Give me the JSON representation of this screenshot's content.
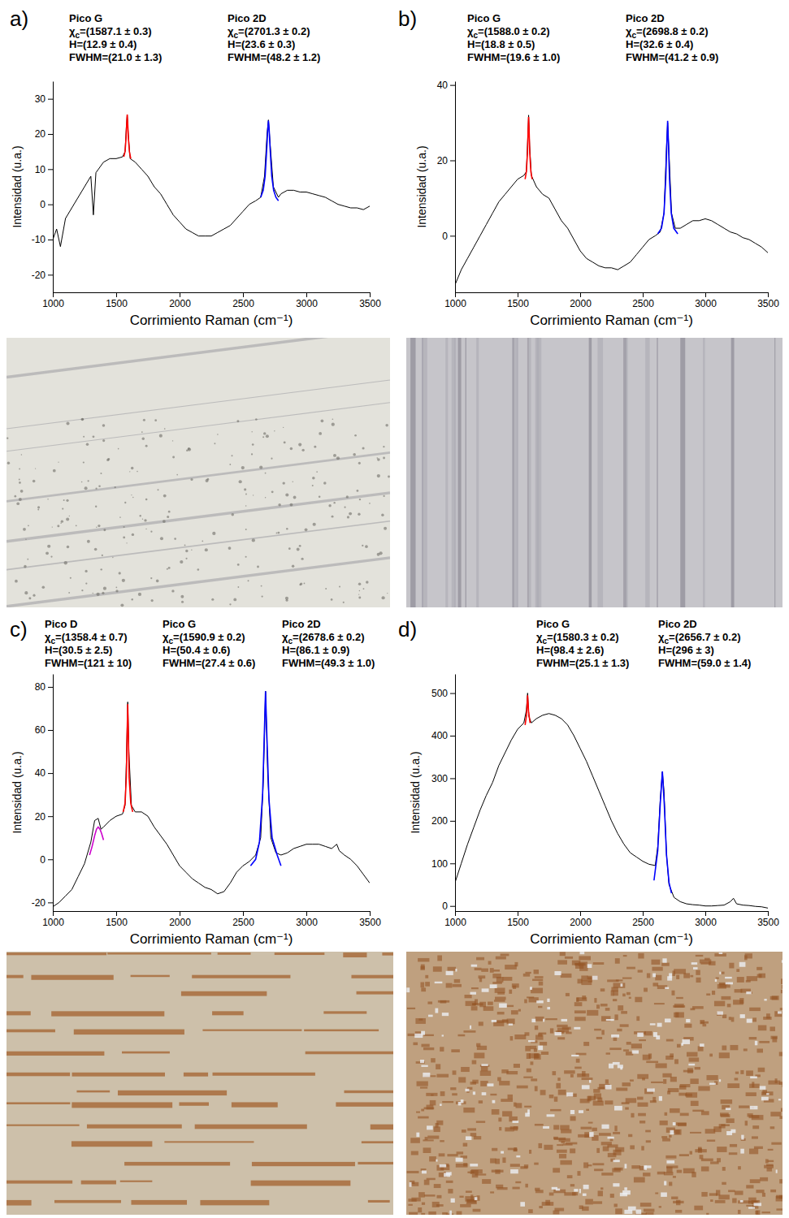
{
  "chart_data": [
    {
      "type": "line",
      "label": "a)",
      "x_label": "Corrimiento Raman (cm⁻¹)",
      "y_label": "Intensidad (u.a.)",
      "xlim": [
        1000,
        3500
      ],
      "xticks": [
        1000,
        1500,
        2000,
        2500,
        3000,
        3500
      ],
      "ylim": [
        -25,
        35
      ],
      "yticks": [
        -20,
        -10,
        0,
        10,
        20,
        30
      ],
      "series": [
        {
          "color": "#000000",
          "x": [
            1000,
            1030,
            1060,
            1100,
            1150,
            1200,
            1250,
            1300,
            1320,
            1340,
            1400,
            1450,
            1500,
            1550,
            1570,
            1580,
            1587,
            1595,
            1610,
            1650,
            1700,
            1750,
            1800,
            1850,
            1900,
            1950,
            2000,
            2050,
            2100,
            2150,
            2200,
            2250,
            2300,
            2350,
            2400,
            2450,
            2500,
            2550,
            2600,
            2640,
            2670,
            2690,
            2701,
            2715,
            2740,
            2780,
            2800,
            2850,
            2900,
            2950,
            3000,
            3050,
            3100,
            3150,
            3200,
            3250,
            3300,
            3350,
            3400,
            3450,
            3500
          ],
          "values": [
            -10,
            -7,
            -12,
            -4,
            -1,
            2,
            5,
            8,
            -3,
            9,
            12,
            13,
            13,
            13.5,
            15,
            22,
            25.5,
            20,
            13,
            12,
            10,
            8,
            5,
            3,
            0,
            -3,
            -5,
            -7,
            -8,
            -9,
            -9,
            -9,
            -8,
            -7,
            -6,
            -4,
            -2,
            0,
            1,
            2,
            8,
            20,
            24,
            17,
            5,
            2,
            3,
            4,
            4,
            3.5,
            3.5,
            3,
            2.5,
            2,
            1,
            0,
            -0.5,
            -1,
            -1,
            -1.5,
            -0.5
          ]
        },
        {
          "color": "#ff0000",
          "x": [
            1560,
            1570,
            1578,
            1583,
            1587,
            1591,
            1596,
            1604,
            1615
          ],
          "values": [
            13.5,
            15,
            19,
            23,
            25.5,
            23,
            19,
            15,
            13
          ]
        },
        {
          "color": "#0000ff",
          "x": [
            2640,
            2660,
            2675,
            2688,
            2695,
            2701,
            2707,
            2714,
            2727,
            2742,
            2760,
            2780
          ],
          "values": [
            2,
            4,
            8,
            16,
            21,
            23.8,
            21,
            16,
            8,
            4,
            2,
            1
          ]
        }
      ],
      "annotations": [
        {
          "title": "Pico G",
          "lines": [
            {
              "symbol": "χ",
              "subscript": "c",
              "text": "=(1587.1 ± 0.3)"
            },
            {
              "symbol": "H",
              "text": "=(12.9 ± 0.4)"
            },
            {
              "symbol": "FWHM",
              "text": "=(21.0 ± 1.3)"
            }
          ]
        },
        {
          "title": "Pico 2D",
          "lines": [
            {
              "symbol": "χ",
              "subscript": "c",
              "text": "=(2701.3 ± 0.2)"
            },
            {
              "symbol": "H",
              "text": "=(23.6 ± 0.3)"
            },
            {
              "symbol": "FWHM",
              "text": "=(48.2 ± 1.2)"
            }
          ]
        }
      ]
    },
    {
      "type": "line",
      "label": "b)",
      "x_label": "Corrimiento Raman (cm⁻¹)",
      "y_label": "Intensidad (u.a.)",
      "xlim": [
        1000,
        3500
      ],
      "xticks": [
        1000,
        1500,
        2000,
        2500,
        3000,
        3500
      ],
      "ylim": [
        -15,
        41
      ],
      "yticks": [
        0,
        20,
        40
      ],
      "series": [
        {
          "color": "#000000",
          "x": [
            1000,
            1050,
            1100,
            1150,
            1200,
            1250,
            1300,
            1350,
            1400,
            1450,
            1500,
            1550,
            1570,
            1580,
            1588,
            1596,
            1610,
            1650,
            1700,
            1750,
            1800,
            1850,
            1900,
            1950,
            2000,
            2050,
            2100,
            2150,
            2200,
            2250,
            2300,
            2350,
            2400,
            2450,
            2500,
            2550,
            2600,
            2640,
            2670,
            2688,
            2699,
            2710,
            2730,
            2760,
            2800,
            2850,
            2900,
            2950,
            3000,
            3050,
            3100,
            3150,
            3200,
            3250,
            3300,
            3350,
            3400,
            3450,
            3500
          ],
          "values": [
            -13,
            -9,
            -6,
            -3,
            0,
            3,
            6,
            9,
            11,
            13,
            15,
            16,
            17,
            25,
            32,
            24,
            16,
            13,
            11,
            10,
            7,
            4,
            2,
            -1,
            -4,
            -6,
            -7,
            -8,
            -8.5,
            -8.5,
            -9,
            -8,
            -7,
            -5,
            -3,
            -1,
            0,
            1,
            6,
            22,
            30,
            22,
            6,
            2,
            2,
            3,
            4,
            4,
            4.5,
            4,
            3,
            2,
            1,
            0.5,
            -0.5,
            -1,
            -2,
            -3,
            -4.5
          ]
        },
        {
          "color": "#ff0000",
          "x": [
            1560,
            1570,
            1579,
            1584,
            1588,
            1592,
            1597,
            1606,
            1616
          ],
          "values": [
            15,
            17,
            22,
            28,
            31.5,
            28,
            22,
            17,
            15
          ]
        },
        {
          "color": "#0000ff",
          "x": [
            2620,
            2650,
            2670,
            2684,
            2692,
            2699,
            2706,
            2714,
            2728,
            2748,
            2780
          ],
          "values": [
            0.5,
            2,
            6,
            15,
            24,
            30.5,
            24,
            15,
            6,
            2,
            0.5
          ]
        }
      ],
      "annotations": [
        {
          "title": "Pico G",
          "lines": [
            {
              "symbol": "χ",
              "subscript": "c",
              "text": "=(1588.0 ± 0.2)"
            },
            {
              "symbol": "H",
              "text": "=(18.8 ± 0.5)"
            },
            {
              "symbol": "FWHM",
              "text": "=(19.6 ± 1.0)"
            }
          ]
        },
        {
          "title": "Pico 2D",
          "lines": [
            {
              "symbol": "χ",
              "subscript": "c",
              "text": "=(2698.8 ± 0.2)"
            },
            {
              "symbol": "H",
              "text": "=(32.6 ± 0.4)"
            },
            {
              "symbol": "FWHM",
              "text": "=(41.2 ± 0.9)"
            }
          ]
        }
      ]
    },
    {
      "type": "line",
      "label": "c)",
      "x_label": "Corrimiento Raman (cm⁻¹)",
      "y_label": "Intensidad (u.a.)",
      "xlim": [
        1000,
        3500
      ],
      "xticks": [
        1000,
        1500,
        2000,
        2500,
        3000,
        3500
      ],
      "ylim": [
        -24,
        86
      ],
      "yticks": [
        -20,
        0,
        20,
        40,
        60,
        80
      ],
      "series": [
        {
          "color": "#000000",
          "x": [
            1000,
            1050,
            1100,
            1150,
            1200,
            1250,
            1300,
            1330,
            1358,
            1380,
            1400,
            1450,
            1500,
            1550,
            1570,
            1580,
            1591,
            1600,
            1620,
            1650,
            1700,
            1750,
            1800,
            1850,
            1900,
            1950,
            2000,
            2050,
            2100,
            2150,
            2200,
            2250,
            2300,
            2350,
            2400,
            2450,
            2500,
            2550,
            2600,
            2640,
            2660,
            2678,
            2695,
            2720,
            2760,
            2800,
            2850,
            2900,
            2950,
            3000,
            3050,
            3100,
            3150,
            3200,
            3240,
            3260,
            3300,
            3350,
            3400,
            3450,
            3500
          ],
          "values": [
            -22,
            -20,
            -17,
            -14,
            -8,
            -2,
            8,
            18,
            19,
            14,
            15,
            18,
            20,
            21,
            25,
            45,
            73,
            50,
            25,
            22,
            22,
            20,
            15,
            11,
            7,
            2,
            -3,
            -6,
            -9,
            -11,
            -13,
            -14,
            -16,
            -15,
            -11,
            -6,
            -3,
            -1,
            2,
            10,
            35,
            78,
            40,
            10,
            3,
            2,
            3,
            5,
            6,
            7,
            7,
            7,
            6,
            5,
            7,
            4,
            2,
            0,
            -3,
            -7,
            -11
          ]
        },
        {
          "color": "#cc00cc",
          "x": [
            1290,
            1310,
            1330,
            1345,
            1358,
            1372,
            1385,
            1400
          ],
          "values": [
            2,
            6,
            11,
            14,
            15,
            14,
            12,
            9
          ]
        },
        {
          "color": "#ff0000",
          "x": [
            1555,
            1570,
            1580,
            1586,
            1591,
            1596,
            1602,
            1615,
            1630
          ],
          "values": [
            22,
            26,
            38,
            58,
            72,
            58,
            38,
            26,
            22
          ]
        },
        {
          "color": "#0000ff",
          "x": [
            2560,
            2600,
            2630,
            2655,
            2667,
            2678,
            2690,
            2705,
            2730,
            2770,
            2800
          ],
          "values": [
            -3,
            0,
            8,
            30,
            55,
            78,
            55,
            28,
            10,
            2,
            -3
          ]
        }
      ],
      "annotations": [
        {
          "title": "Pico D",
          "lines": [
            {
              "symbol": "χ",
              "subscript": "c",
              "text": "=(1358.4 ± 0.7)"
            },
            {
              "symbol": "H",
              "text": "=(30.5 ± 2.5)"
            },
            {
              "symbol": "FWHM",
              "text": "=(121 ± 10)"
            }
          ]
        },
        {
          "title": "Pico G",
          "lines": [
            {
              "symbol": "χ",
              "subscript": "c",
              "text": "=(1590.9 ± 0.2)"
            },
            {
              "symbol": "H",
              "text": "=(50.4 ± 0.6)"
            },
            {
              "symbol": "FWHM",
              "text": "=(27.4 ± 0.6)"
            }
          ]
        },
        {
          "title": "Pico 2D",
          "lines": [
            {
              "symbol": "χ",
              "subscript": "c",
              "text": "=(2678.6 ± 0.2)"
            },
            {
              "symbol": "H",
              "text": "=(86.1 ± 0.9)"
            },
            {
              "symbol": "FWHM",
              "text": "=(49.3 ± 1.0)"
            }
          ]
        }
      ]
    },
    {
      "type": "line",
      "label": "d)",
      "x_label": "Corrimiento Raman (cm⁻¹)",
      "y_label": "Intensidad (u.a.)",
      "xlim": [
        1000,
        3500
      ],
      "xticks": [
        1000,
        1500,
        2000,
        2500,
        3000,
        3500
      ],
      "ylim": [
        -12,
        545
      ],
      "yticks": [
        0,
        100,
        200,
        300,
        400,
        500
      ],
      "series": [
        {
          "color": "#000000",
          "x": [
            1000,
            1050,
            1100,
            1150,
            1200,
            1250,
            1300,
            1350,
            1400,
            1450,
            1500,
            1550,
            1570,
            1580,
            1590,
            1610,
            1650,
            1700,
            1750,
            1800,
            1850,
            1900,
            1950,
            2000,
            2050,
            2100,
            2150,
            2200,
            2250,
            2300,
            2350,
            2400,
            2450,
            2500,
            2550,
            2600,
            2620,
            2640,
            2657,
            2670,
            2690,
            2710,
            2750,
            2800,
            2850,
            2900,
            2950,
            3000,
            3050,
            3100,
            3150,
            3200,
            3225,
            3250,
            3300,
            3350,
            3400,
            3450,
            3500
          ],
          "values": [
            55,
            100,
            145,
            185,
            225,
            260,
            290,
            330,
            360,
            390,
            415,
            430,
            460,
            500,
            445,
            430,
            440,
            448,
            452,
            448,
            440,
            425,
            400,
            370,
            340,
            305,
            270,
            235,
            200,
            170,
            145,
            125,
            115,
            105,
            98,
            95,
            140,
            250,
            315,
            270,
            120,
            50,
            20,
            10,
            5,
            3,
            2,
            0,
            0,
            1,
            2,
            10,
            18,
            5,
            2,
            1,
            -1,
            -2,
            -5
          ]
        },
        {
          "color": "#ff0000",
          "x": [
            1560,
            1572,
            1580,
            1588,
            1600
          ],
          "values": [
            425,
            450,
            495,
            455,
            430
          ]
        },
        {
          "color": "#0000ff",
          "x": [
            2590,
            2620,
            2640,
            2657,
            2672,
            2690,
            2710,
            2730
          ],
          "values": [
            60,
            130,
            240,
            316,
            240,
            120,
            55,
            30
          ]
        }
      ],
      "annotations": [
        {
          "title": "Pico G",
          "lines": [
            {
              "symbol": "χ",
              "subscript": "c",
              "text": "=(1580.3 ± 0.2)"
            },
            {
              "symbol": "H",
              "text": "=(98.4 ± 2.6)"
            },
            {
              "symbol": "FWHM",
              "text": "=(25.1 ± 1.3)"
            }
          ]
        },
        {
          "title": "Pico 2D",
          "lines": [
            {
              "symbol": "χ",
              "subscript": "c",
              "text": "=(2656.7 ± 0.2)"
            },
            {
              "symbol": "H",
              "text": "=(296 ± 3)"
            },
            {
              "symbol": "FWHM",
              "text": "=(59.0 ± 1.4)"
            }
          ]
        }
      ]
    }
  ]
}
